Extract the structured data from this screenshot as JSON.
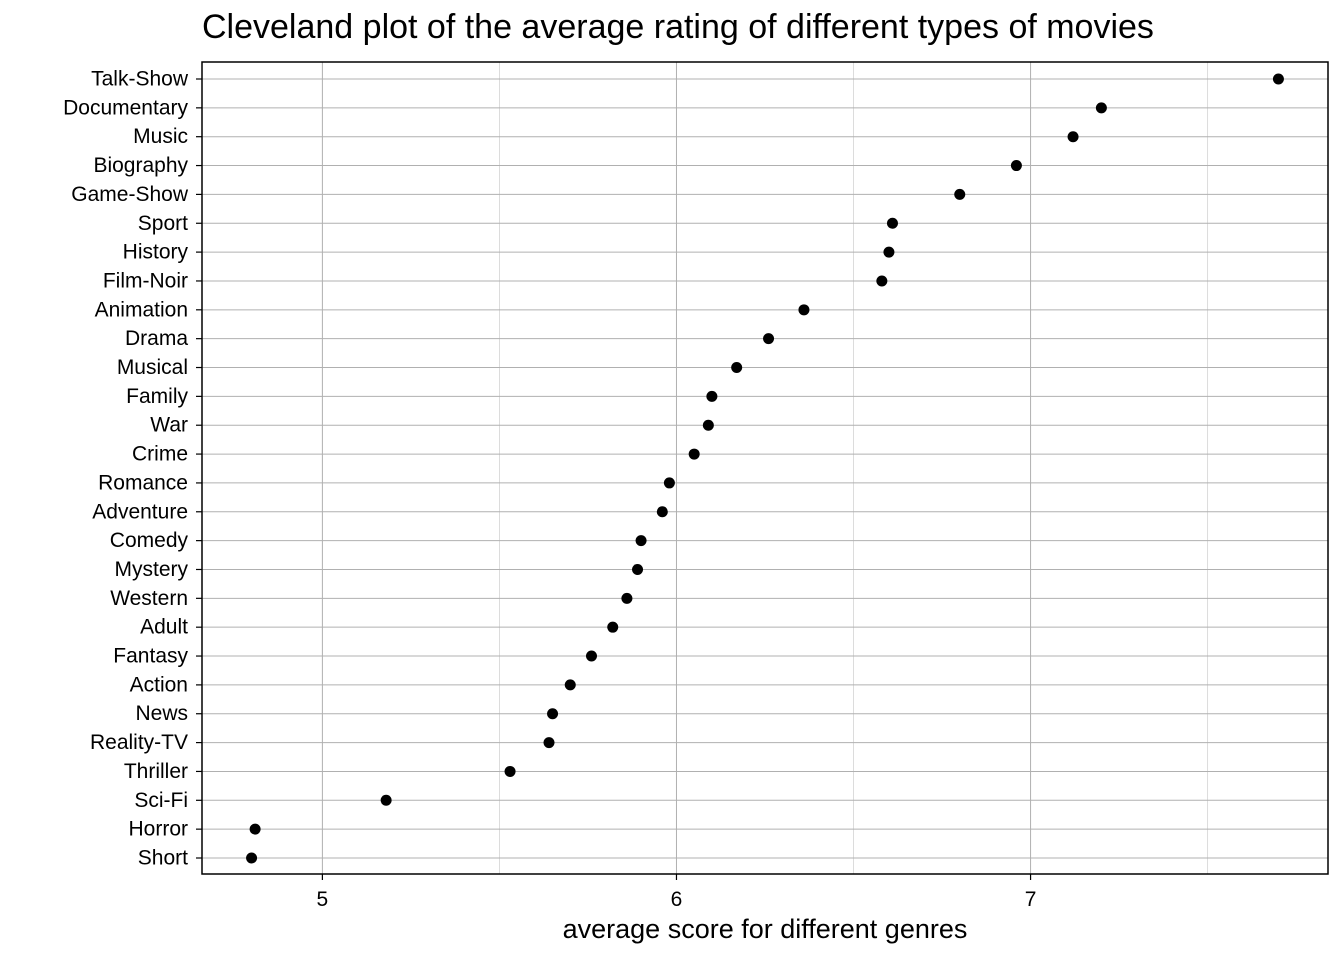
{
  "chart_data": {
    "type": "scatter",
    "title": "Cleveland plot of the average rating of different types of movies",
    "xlabel": "average score for different genres",
    "ylabel": "",
    "xlim": [
      4.66,
      7.84
    ],
    "xticks": [
      5,
      6,
      7
    ],
    "xminor": [
      5.5,
      6.5,
      7.5
    ],
    "grid": true,
    "point_color": "#000000",
    "categories": [
      "Talk-Show",
      "Documentary",
      "Music",
      "Biography",
      "Game-Show",
      "Sport",
      "History",
      "Film-Noir",
      "Animation",
      "Drama",
      "Musical",
      "Family",
      "War",
      "Crime",
      "Romance",
      "Adventure",
      "Comedy",
      "Mystery",
      "Western",
      "Adult",
      "Fantasy",
      "Action",
      "News",
      "Reality-TV",
      "Thriller",
      "Sci-Fi",
      "Horror",
      "Short"
    ],
    "values": [
      7.7,
      7.2,
      7.12,
      6.96,
      6.8,
      6.61,
      6.6,
      6.58,
      6.36,
      6.26,
      6.17,
      6.1,
      6.09,
      6.05,
      5.98,
      5.96,
      5.9,
      5.89,
      5.86,
      5.82,
      5.76,
      5.7,
      5.65,
      5.64,
      5.53,
      5.18,
      4.81,
      4.8
    ]
  }
}
